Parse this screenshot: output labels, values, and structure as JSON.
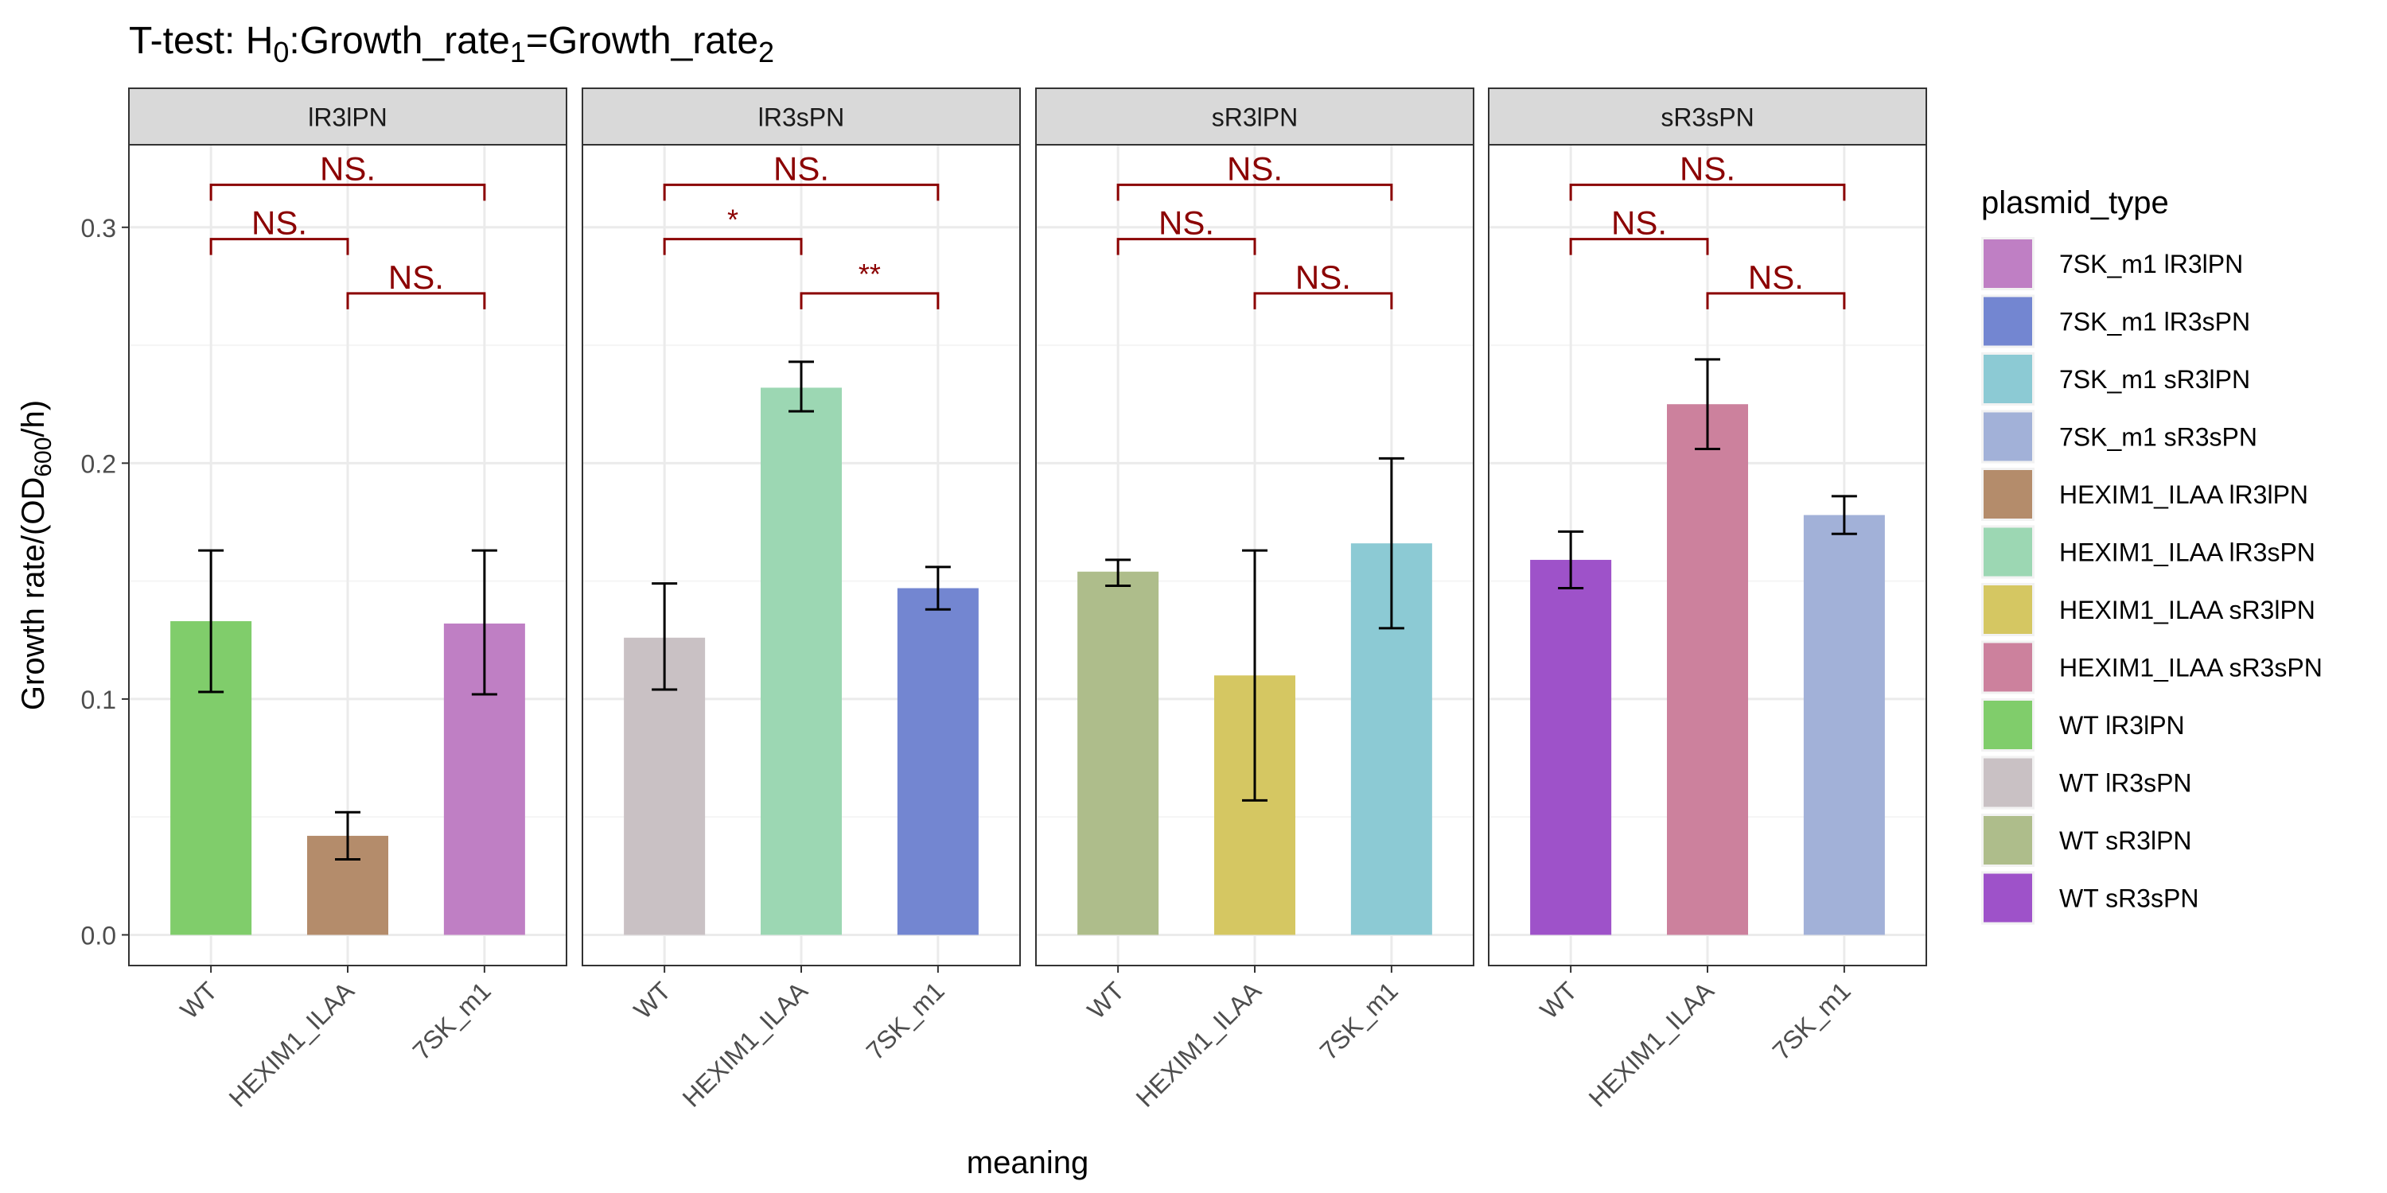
{
  "chart_data": {
    "type": "bar",
    "title": {
      "parts": [
        {
          "text": "T-test: H",
          "sub": false
        },
        {
          "text": "0",
          "sub": true
        },
        {
          "text": ":Growth_rate",
          "sub": false
        },
        {
          "text": "1",
          "sub": true
        },
        {
          "text": "=Growth_rate",
          "sub": false
        },
        {
          "text": "2",
          "sub": true
        }
      ]
    },
    "xlabel": "meaning",
    "ylabel": {
      "parts": [
        {
          "text": "Growth rate/(OD",
          "sub": false
        },
        {
          "text": "600",
          "sub": true
        },
        {
          "text": "/h)",
          "sub": false
        }
      ]
    },
    "ylim": [
      -0.013,
      0.335
    ],
    "yticks": [
      0.0,
      0.1,
      0.2,
      0.3
    ],
    "ytick_labels": [
      "0.0",
      "0.1",
      "0.2",
      "0.3"
    ],
    "grid": true,
    "legend_placement": "right",
    "categories": [
      "WT",
      "HEXIM1_ILAA",
      "7SK_m1"
    ],
    "panels": [
      {
        "name": "lR3lPN",
        "bars": [
          {
            "category": "WT",
            "value": 0.133,
            "err_low": 0.103,
            "err_high": 0.163,
            "fill": "WT lR3lPN"
          },
          {
            "category": "HEXIM1_ILAA",
            "value": 0.042,
            "err_low": 0.032,
            "err_high": 0.052,
            "fill": "HEXIM1_ILAA lR3lPN"
          },
          {
            "category": "7SK_m1",
            "value": 0.132,
            "err_low": 0.102,
            "err_high": 0.163,
            "fill": "7SK_m1 lR3lPN"
          }
        ],
        "brackets": [
          {
            "from": "WT",
            "to": "7SK_m1",
            "y": 0.318,
            "label": "NS."
          },
          {
            "from": "WT",
            "to": "HEXIM1_ILAA",
            "y": 0.295,
            "label": "NS."
          },
          {
            "from": "HEXIM1_ILAA",
            "to": "7SK_m1",
            "y": 0.272,
            "label": "NS."
          }
        ]
      },
      {
        "name": "lR3sPN",
        "bars": [
          {
            "category": "WT",
            "value": 0.126,
            "err_low": 0.104,
            "err_high": 0.149,
            "fill": "WT lR3sPN"
          },
          {
            "category": "HEXIM1_ILAA",
            "value": 0.232,
            "err_low": 0.222,
            "err_high": 0.243,
            "fill": "HEXIM1_ILAA lR3sPN"
          },
          {
            "category": "7SK_m1",
            "value": 0.147,
            "err_low": 0.138,
            "err_high": 0.156,
            "fill": "7SK_m1 lR3sPN"
          }
        ],
        "brackets": [
          {
            "from": "WT",
            "to": "7SK_m1",
            "y": 0.318,
            "label": "NS."
          },
          {
            "from": "WT",
            "to": "HEXIM1_ILAA",
            "y": 0.295,
            "label": "*"
          },
          {
            "from": "HEXIM1_ILAA",
            "to": "7SK_m1",
            "y": 0.272,
            "label": "**"
          }
        ]
      },
      {
        "name": "sR3lPN",
        "bars": [
          {
            "category": "WT",
            "value": 0.154,
            "err_low": 0.148,
            "err_high": 0.159,
            "fill": "WT sR3lPN"
          },
          {
            "category": "HEXIM1_ILAA",
            "value": 0.11,
            "err_low": 0.057,
            "err_high": 0.163,
            "fill": "HEXIM1_ILAA sR3lPN"
          },
          {
            "category": "7SK_m1",
            "value": 0.166,
            "err_low": 0.13,
            "err_high": 0.202,
            "fill": "7SK_m1 sR3lPN"
          }
        ],
        "brackets": [
          {
            "from": "WT",
            "to": "7SK_m1",
            "y": 0.318,
            "label": "NS."
          },
          {
            "from": "WT",
            "to": "HEXIM1_ILAA",
            "y": 0.295,
            "label": "NS."
          },
          {
            "from": "HEXIM1_ILAA",
            "to": "7SK_m1",
            "y": 0.272,
            "label": "NS."
          }
        ]
      },
      {
        "name": "sR3sPN",
        "bars": [
          {
            "category": "WT",
            "value": 0.159,
            "err_low": 0.147,
            "err_high": 0.171,
            "fill": "WT sR3sPN"
          },
          {
            "category": "HEXIM1_ILAA",
            "value": 0.225,
            "err_low": 0.206,
            "err_high": 0.244,
            "fill": "HEXIM1_ILAA sR3sPN"
          },
          {
            "category": "7SK_m1",
            "value": 0.178,
            "err_low": 0.17,
            "err_high": 0.186,
            "fill": "7SK_m1 sR3sPN"
          }
        ],
        "brackets": [
          {
            "from": "WT",
            "to": "7SK_m1",
            "y": 0.318,
            "label": "NS."
          },
          {
            "from": "WT",
            "to": "HEXIM1_ILAA",
            "y": 0.295,
            "label": "NS."
          },
          {
            "from": "HEXIM1_ILAA",
            "to": "7SK_m1",
            "y": 0.272,
            "label": "NS."
          }
        ]
      }
    ],
    "legend": {
      "title": "plasmid_type",
      "items": [
        {
          "label": "7SK_m1 lR3lPN",
          "color": "#bf7fc4"
        },
        {
          "label": "7SK_m1 lR3sPN",
          "color": "#7386d1"
        },
        {
          "label": "7SK_m1 sR3lPN",
          "color": "#8ccad4"
        },
        {
          "label": "7SK_m1 sR3sPN",
          "color": "#a2b1d8"
        },
        {
          "label": "HEXIM1_ILAA lR3lPN",
          "color": "#b48c6b"
        },
        {
          "label": "HEXIM1_ILAA lR3sPN",
          "color": "#9cd7b3"
        },
        {
          "label": "HEXIM1_ILAA sR3lPN",
          "color": "#d5c762"
        },
        {
          "label": "HEXIM1_ILAA sR3sPN",
          "color": "#cc819d"
        },
        {
          "label": "WT lR3lPN",
          "color": "#80cd6b"
        },
        {
          "label": "WT lR3sPN",
          "color": "#c9c1c4"
        },
        {
          "label": "WT sR3lPN",
          "color": "#aebd8b"
        },
        {
          "label": "WT sR3sPN",
          "color": "#9e52c9"
        }
      ]
    },
    "colors": {
      "bracket": "#8b0000",
      "grid_major": "#ebebeb",
      "grid_minor": "#f5f5f5",
      "strip_fill": "#d9d9d9",
      "panel_border": "#333333",
      "text": "#000000",
      "tick_text": "#4d4d4d"
    }
  }
}
